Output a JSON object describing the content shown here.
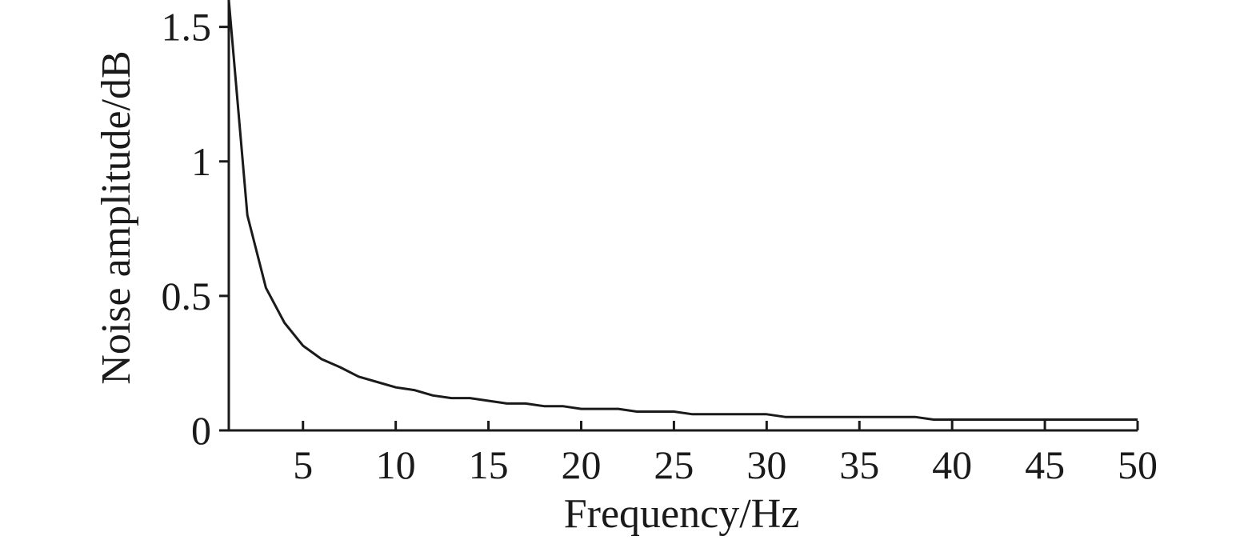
{
  "chart_data": {
    "type": "line",
    "xlabel": "Frequency/Hz",
    "ylabel": "Noise amplitude/dB",
    "xlim": [
      1,
      50
    ],
    "ylim": [
      0,
      1.6
    ],
    "x_ticks": [
      5,
      10,
      15,
      20,
      25,
      30,
      35,
      40,
      45,
      50
    ],
    "x_tick_labels": [
      "5",
      "10",
      "15",
      "20",
      "25",
      "30",
      "35",
      "40",
      "45",
      "50"
    ],
    "y_ticks": [
      0,
      0.5,
      1,
      1.5
    ],
    "y_tick_labels": [
      "0",
      "0.5",
      "1",
      "1.5"
    ],
    "grid": false,
    "colors": {
      "line": "#1a1a1a",
      "axis": "#1a1a1a"
    },
    "series": [
      {
        "x": [
          1,
          2,
          3,
          4,
          5,
          6,
          7,
          8,
          9,
          10,
          11,
          12,
          13,
          14,
          15,
          16,
          17,
          18,
          19,
          20,
          21,
          22,
          23,
          24,
          25,
          26,
          27,
          28,
          29,
          30,
          31,
          32,
          33,
          34,
          35,
          36,
          37,
          38,
          39,
          40,
          41,
          42,
          43,
          44,
          45,
          46,
          47,
          48,
          49,
          50
        ],
        "y": [
          1.6,
          0.8,
          0.53,
          0.4,
          0.315,
          0.265,
          0.235,
          0.2,
          0.18,
          0.16,
          0.15,
          0.13,
          0.12,
          0.12,
          0.11,
          0.1,
          0.1,
          0.09,
          0.09,
          0.08,
          0.08,
          0.08,
          0.07,
          0.07,
          0.07,
          0.06,
          0.06,
          0.06,
          0.06,
          0.06,
          0.05,
          0.05,
          0.05,
          0.05,
          0.05,
          0.05,
          0.05,
          0.05,
          0.04,
          0.04,
          0.04,
          0.04,
          0.04,
          0.04,
          0.04,
          0.04,
          0.04,
          0.04,
          0.04,
          0.04
        ]
      }
    ]
  }
}
